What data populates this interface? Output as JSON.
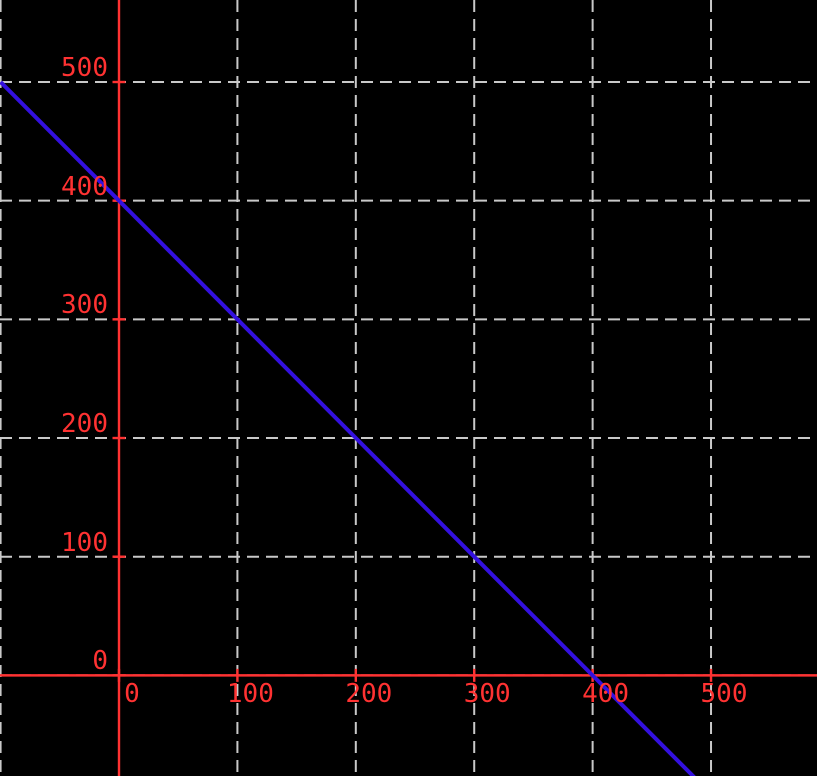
{
  "chart_data": {
    "type": "line",
    "title": "",
    "xlabel": "",
    "ylabel": "",
    "xlim": [
      -100.5,
      589.5
    ],
    "ylim": [
      -84.8,
      569.1
    ],
    "x_ticks": [
      0,
      100,
      200,
      300,
      400,
      500
    ],
    "x_tick_labels": [
      "0",
      "100",
      "200",
      "300",
      "400",
      "500"
    ],
    "y_ticks": [
      0,
      100,
      200,
      300,
      400,
      500
    ],
    "y_tick_labels": [
      "0",
      "100",
      "200",
      "300",
      "400",
      "500"
    ],
    "grid_x": [
      -100,
      0,
      100,
      200,
      300,
      400,
      500
    ],
    "grid_y": [
      0,
      100,
      200,
      300,
      400,
      500
    ],
    "grid": true,
    "grid_style": "dashed",
    "legend": false,
    "axes_through_origin": true,
    "series": [
      {
        "name": "line",
        "equation": "y = 400 - x",
        "x": [
          -100,
          0,
          100,
          200,
          300,
          400,
          500
        ],
        "y": [
          500,
          400,
          300,
          200,
          100,
          0,
          -100
        ]
      }
    ],
    "colors": {
      "background": "#000000",
      "axis": "#ff3232",
      "tick_label": "#ff3232",
      "grid": "#c9c9c9",
      "line": "#3310df"
    }
  }
}
